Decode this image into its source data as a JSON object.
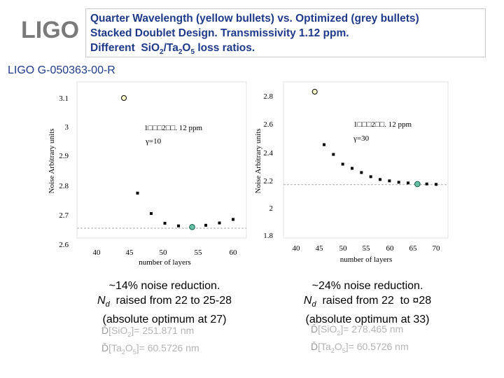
{
  "header": {
    "logo_text": "LIGO",
    "title_lines": [
      "Quarter Wavelength (yellow bullets) vs. Optimized (grey bullets)",
      "Stacked Doublet Design. Transmissivity 1.12 ppm.",
      "Different  SiO2/Ta2O5 loss ratios."
    ],
    "doc_id": "LIGO G-050363-00-R"
  },
  "colors": {
    "title": "#1f3a8a",
    "quarter_wave_marker": "#ffffcc",
    "optimized_marker": "#66c2a5",
    "param_text": "#b3b3b3"
  },
  "chart_data": [
    {
      "type": "scatter",
      "xlabel": "number of layers",
      "ylabel": "Noise Arbitrary units",
      "xticks": [
        40,
        45,
        50,
        55,
        60
      ],
      "yticks": [
        2.6,
        2.7,
        2.8,
        2.9,
        3,
        3.1
      ],
      "xlim": [
        38,
        61.5
      ],
      "ylim": [
        2.6,
        3.13
      ],
      "annotations": [
        "1□□□2□□. 12 ppm",
        "γ=10"
      ],
      "quarter_wave_point": {
        "x": 44,
        "y": 3.1
      },
      "optimized_series": {
        "x": [
          46,
          48,
          50,
          52,
          54,
          56,
          58,
          60
        ],
        "y": [
          2.775,
          2.705,
          2.672,
          2.663,
          2.66,
          2.665,
          2.673,
          2.685
        ]
      },
      "optimum_point": {
        "x": 54,
        "y": 2.659
      },
      "reference_line_y": 2.655,
      "caption": [
        "~14% noise reduction.",
        "Nd  raised from 22 to 25-28",
        "(absolute optimum at 27)"
      ],
      "params": [
        "[SiO2]= 251.871 nm",
        "[Ta2O5]= 60.5726 nm"
      ]
    },
    {
      "type": "scatter",
      "xlabel": "number of layers",
      "ylabel": "Noise Arbitrary units",
      "xticks": [
        40,
        45,
        50,
        55,
        60,
        65,
        70
      ],
      "yticks": [
        1.8,
        2,
        2.2,
        2.4,
        2.6,
        2.8
      ],
      "xlim": [
        38,
        71
      ],
      "ylim": [
        1.8,
        2.82
      ],
      "annotations": [
        "1□□□2□□. 12 ppm",
        "γ=30"
      ],
      "quarter_wave_point": {
        "x": 44,
        "y": 2.83
      },
      "optimized_series": {
        "x": [
          46,
          48,
          50,
          52,
          54,
          56,
          58,
          60,
          62,
          64,
          66,
          68,
          70
        ],
        "y": [
          2.45,
          2.38,
          2.31,
          2.28,
          2.25,
          2.22,
          2.2,
          2.19,
          2.18,
          2.175,
          2.17,
          2.168,
          2.165
        ]
      },
      "optimum_point": {
        "x": 66,
        "y": 2.167
      },
      "reference_line_y": 2.163,
      "caption": [
        "~24% noise reduction.",
        "Nd  raised from 22  to ¤28",
        "(absolute optimum at 33)"
      ],
      "params": [
        "[SiO2]= 278.465 nm",
        "[Ta2O5]= 60.5726 nm"
      ]
    }
  ]
}
